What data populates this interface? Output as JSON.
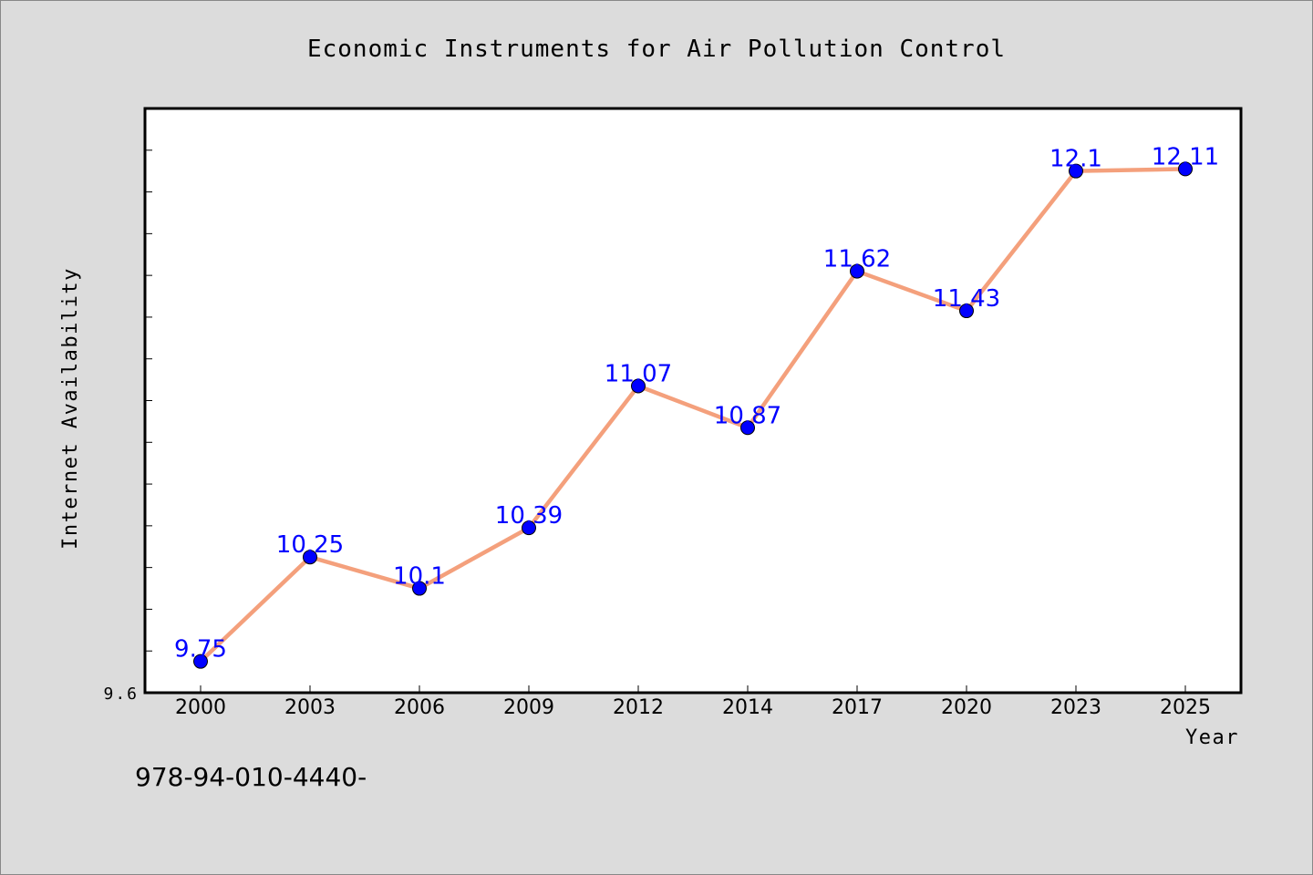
{
  "chart_data": {
    "type": "line",
    "title": "Economic Instruments for Air Pollution Control",
    "xlabel": "Year",
    "ylabel": "Internet Availability",
    "categories": [
      "2000",
      "2003",
      "2006",
      "2009",
      "2012",
      "2014",
      "2017",
      "2020",
      "2023",
      "2025"
    ],
    "series": [
      {
        "values": [
          9.75,
          10.25,
          10.1,
          10.39,
          11.07,
          10.87,
          11.62,
          11.43,
          12.1,
          12.11
        ],
        "data_labels": [
          "9.75",
          "10.25",
          "10.1",
          "10.39",
          "11.07",
          "10.87",
          "11.62",
          "11.43",
          "12.1",
          "12.11"
        ]
      }
    ],
    "ylim": [
      9.6,
      12.4
    ],
    "y_tick_labels": [
      "9.6"
    ],
    "grid": false,
    "line_color": "#f4a07c",
    "marker_color": "#0000ff",
    "label_color": "#0000ff"
  },
  "footnote": "978-94-010-4440-"
}
